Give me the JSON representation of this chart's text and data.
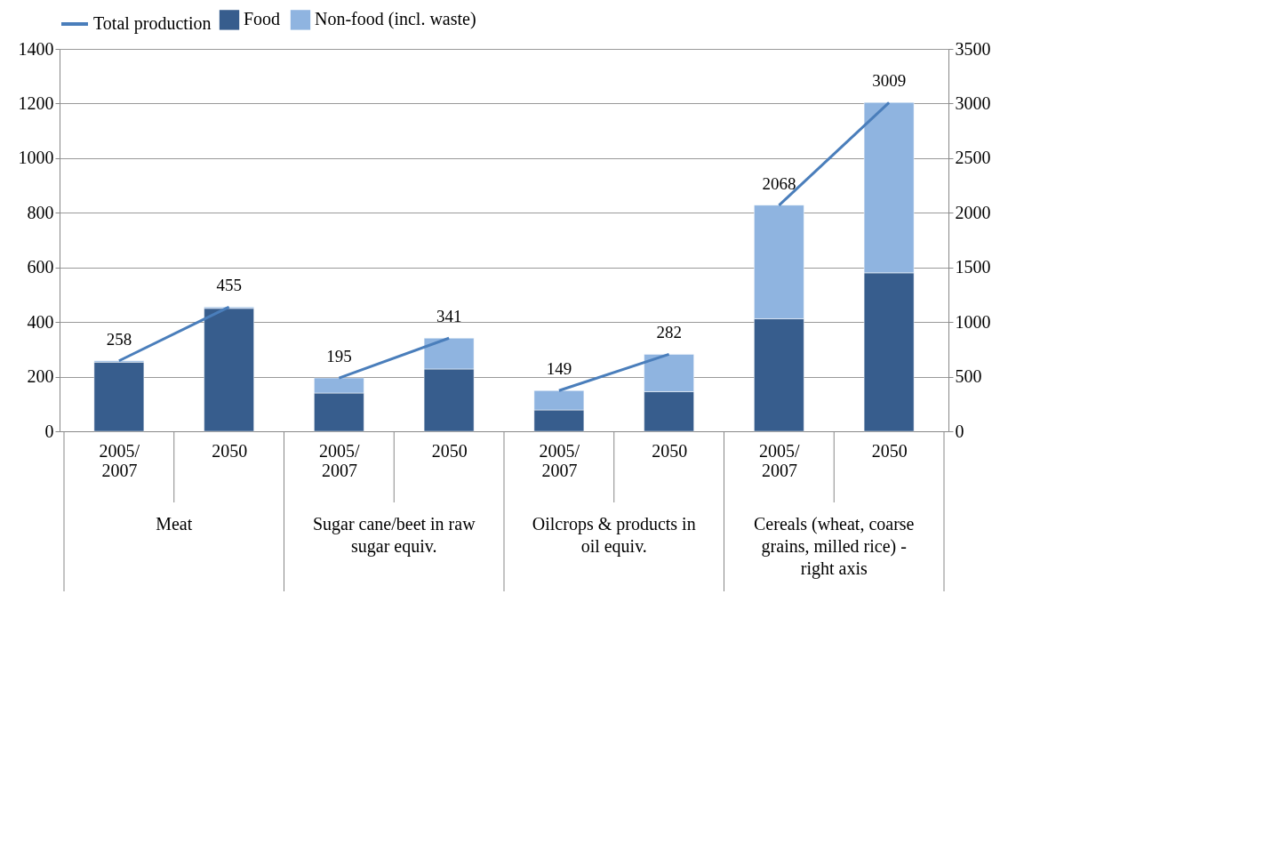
{
  "chart_data": {
    "type": "bar",
    "stacked": true,
    "categories": [
      "2005/2007",
      "2050",
      "2005/2007",
      "2050",
      "2005/2007",
      "2050",
      "2005/2007",
      "2050"
    ],
    "series": [
      {
        "name": "Food",
        "color": "#375d8d",
        "values": [
          253,
          450,
          140,
          228,
          78,
          145,
          null,
          null
        ]
      },
      {
        "name": "Non-food (incl. waste)",
        "color": "#8fb4e0",
        "values": [
          5,
          5,
          55,
          113,
          71,
          137,
          null,
          null
        ]
      },
      {
        "color": "#375d8d",
        "axis": "y2",
        "values": [
          null,
          null,
          null,
          null,
          null,
          null,
          1030,
          1450
        ]
      },
      {
        "color": "#8fb4e0",
        "axis": "y2",
        "values": [
          null,
          null,
          null,
          null,
          null,
          null,
          1040,
          1560
        ]
      },
      {
        "name": "Total production",
        "type": "line",
        "color": "#4a7ebb",
        "values": [
          258,
          455,
          null,
          null,
          null,
          null,
          null,
          null
        ],
        "value_labels": [
          "258",
          "455",
          null,
          null,
          null,
          null,
          null,
          null
        ]
      },
      {
        "type": "line",
        "color": "#4a7ebb",
        "values": [
          null,
          null,
          195,
          341,
          null,
          null,
          null,
          null
        ],
        "value_labels": [
          null,
          null,
          "195",
          "341",
          null,
          null,
          null,
          null
        ]
      },
      {
        "type": "line",
        "color": "#4a7ebb",
        "values": [
          null,
          null,
          null,
          null,
          149,
          282,
          null,
          null
        ],
        "value_labels": [
          null,
          null,
          null,
          null,
          "149",
          "282",
          null,
          null
        ]
      },
      {
        "type": "line",
        "color": "#4a7ebb",
        "axis": "y2",
        "values": [
          null,
          null,
          null,
          null,
          null,
          null,
          2068,
          3009
        ],
        "value_labels": [
          null,
          null,
          null,
          null,
          null,
          null,
          "2068",
          "3009"
        ]
      }
    ],
    "ylim": [
      0,
      1400
    ],
    "yticks": [
      0,
      200,
      400,
      600,
      800,
      1000,
      1200,
      1400
    ],
    "y2lim": [
      0,
      3500
    ],
    "y2ticks": [
      0,
      500,
      1000,
      1500,
      2000,
      2500,
      3000,
      3500
    ],
    "annotations": [
      "Meat",
      "Sugar cane/beet in raw sugar equiv.",
      "Oilcrops & products in oil equiv.",
      "Cereals (wheat, coarse grains, milled rice) - right axis"
    ],
    "grid": "y",
    "legend": "top"
  }
}
